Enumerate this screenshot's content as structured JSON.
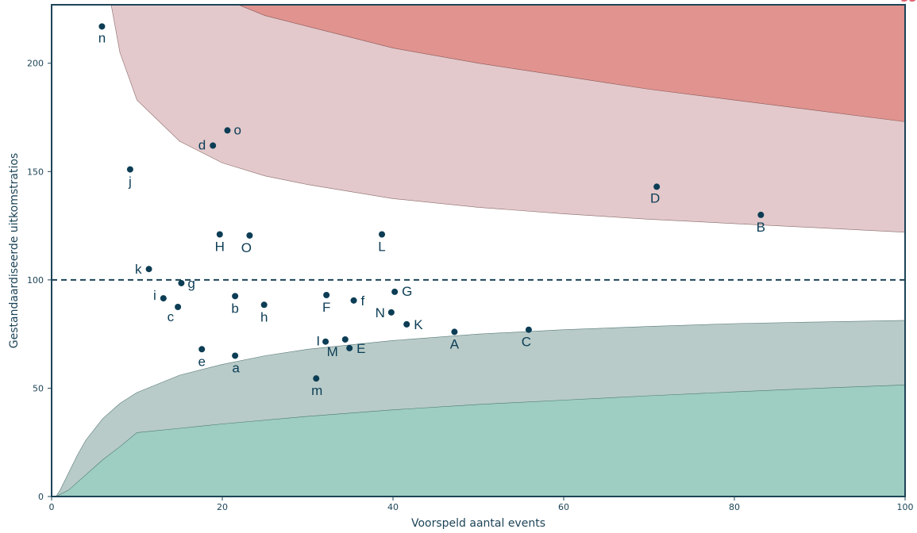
{
  "chart_data": {
    "type": "scatter",
    "title": "",
    "xlabel": "Voorspeld aantal events",
    "ylabel": "Gestandaardiseerde uitkomstratios",
    "xlim": [
      0,
      100
    ],
    "ylim": [
      0,
      227
    ],
    "x_ticks": [
      "0",
      "20",
      "40",
      "60",
      "80",
      "100"
    ],
    "y_ticks": [
      "0",
      "50",
      "100",
      "150",
      "200"
    ],
    "reference_line": {
      "y": 100,
      "style": "dashed"
    },
    "grid": false,
    "legend": "none",
    "corner_mark": "ЭЭ",
    "colors": {
      "outer_upper_band": "#e3c9cb",
      "inner_upper_band": "#e0938f",
      "outer_lower_band": "#b8cbc8",
      "inner_lower_band": "#9ecdc2",
      "points": "#0c3d55",
      "axis": "#1d4457",
      "corner_mark": "#e06070"
    },
    "limits": {
      "upper_outer": [
        [
          3.5,
          350
        ],
        [
          5,
          300
        ],
        [
          6,
          248
        ],
        [
          8,
          205
        ],
        [
          10,
          183
        ],
        [
          15,
          164
        ],
        [
          20,
          154
        ],
        [
          25,
          148
        ],
        [
          30,
          144
        ],
        [
          40,
          137.5
        ],
        [
          50,
          133.5
        ],
        [
          60,
          130.5
        ],
        [
          70,
          128
        ],
        [
          80,
          126
        ],
        [
          90,
          124
        ],
        [
          100,
          122
        ]
      ],
      "upper_inner": [
        [
          17,
          300
        ],
        [
          20,
          230
        ],
        [
          25,
          222
        ],
        [
          30,
          217
        ],
        [
          40,
          207
        ],
        [
          50,
          200
        ],
        [
          60,
          194
        ],
        [
          70,
          188
        ],
        [
          80,
          183
        ],
        [
          90,
          178
        ],
        [
          100,
          173
        ]
      ],
      "lower_outer": [
        [
          0.5,
          0
        ],
        [
          1,
          3
        ],
        [
          2,
          11
        ],
        [
          3,
          19
        ],
        [
          4,
          26
        ],
        [
          6,
          36
        ],
        [
          8,
          43
        ],
        [
          10,
          48
        ],
        [
          15,
          56
        ],
        [
          20,
          61
        ],
        [
          25,
          65
        ],
        [
          30,
          68
        ],
        [
          40,
          72
        ],
        [
          50,
          75
        ],
        [
          60,
          77
        ],
        [
          70,
          78.5
        ],
        [
          80,
          79.8
        ],
        [
          90,
          80.6
        ],
        [
          100,
          81.3
        ]
      ],
      "lower_inner": [
        [
          0.5,
          0
        ],
        [
          2,
          3
        ],
        [
          4,
          10
        ],
        [
          6,
          17
        ],
        [
          8,
          23
        ],
        [
          10,
          29.5
        ],
        [
          15,
          31.5
        ],
        [
          20,
          33.5
        ],
        [
          30,
          37
        ],
        [
          40,
          40
        ],
        [
          50,
          42.5
        ],
        [
          60,
          44.5
        ],
        [
          70,
          46.5
        ],
        [
          80,
          48.3
        ],
        [
          90,
          50
        ],
        [
          100,
          51.5
        ]
      ]
    },
    "points": [
      {
        "label": "n",
        "x": 5.9,
        "y": 217
      },
      {
        "label": "o",
        "x": 20.6,
        "y": 169
      },
      {
        "label": "d",
        "x": 18.9,
        "y": 162
      },
      {
        "label": "j",
        "x": 9.2,
        "y": 151
      },
      {
        "label": "D",
        "x": 70.9,
        "y": 143
      },
      {
        "label": "B",
        "x": 83.1,
        "y": 130
      },
      {
        "label": "H",
        "x": 19.7,
        "y": 121
      },
      {
        "label": "O",
        "x": 23.2,
        "y": 120.5
      },
      {
        "label": "L",
        "x": 38.7,
        "y": 121
      },
      {
        "label": "k",
        "x": 11.4,
        "y": 105
      },
      {
        "label": "g",
        "x": 15.2,
        "y": 98.5
      },
      {
        "label": "i",
        "x": 13.1,
        "y": 91.5
      },
      {
        "label": "c",
        "x": 14.8,
        "y": 87.5
      },
      {
        "label": "b",
        "x": 21.5,
        "y": 92.5
      },
      {
        "label": "h",
        "x": 24.9,
        "y": 88.5
      },
      {
        "label": "F",
        "x": 32.2,
        "y": 93
      },
      {
        "label": "f",
        "x": 35.4,
        "y": 90.5
      },
      {
        "label": "G",
        "x": 40.2,
        "y": 94.5
      },
      {
        "label": "N",
        "x": 39.8,
        "y": 85
      },
      {
        "label": "K",
        "x": 41.6,
        "y": 79.5
      },
      {
        "label": "A",
        "x": 47.2,
        "y": 76
      },
      {
        "label": "C",
        "x": 55.9,
        "y": 77
      },
      {
        "label": "I",
        "x": 32.1,
        "y": 71.5
      },
      {
        "label": "M",
        "x": 34.4,
        "y": 72.5
      },
      {
        "label": "E",
        "x": 34.9,
        "y": 68.5
      },
      {
        "label": "e",
        "x": 17.6,
        "y": 68
      },
      {
        "label": "a",
        "x": 21.5,
        "y": 65
      },
      {
        "label": "m",
        "x": 31.0,
        "y": 54.5
      }
    ]
  }
}
